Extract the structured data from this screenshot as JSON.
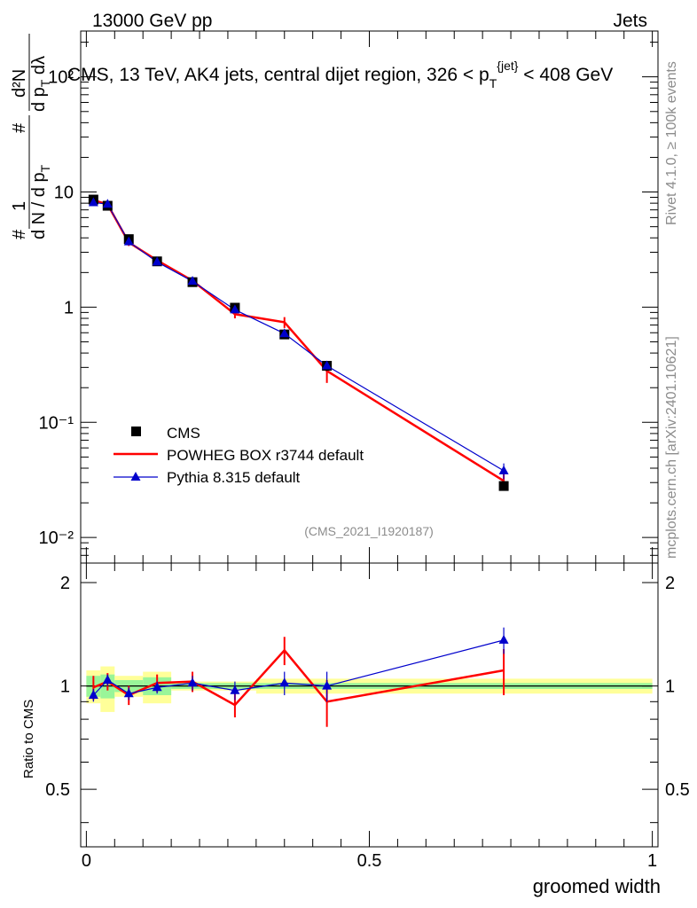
{
  "header": {
    "energy_label": "13000 GeV pp",
    "process_label": "Jets"
  },
  "side_labels": {
    "rivet": "Rivet 4.1.0, ≥ 100k events",
    "mcplots": "mcplots.cern.ch [arXiv:2401.10621]"
  },
  "chart_data": [
    {
      "type": "line",
      "title": "CMS, 13 TeV, AK4 jets, central dijet region, 326 < p_T^{jet} < 408 GeV",
      "analysis_id": "(CMS_2021_I1920187)",
      "ylabel": "# 1/(d N / d p_T) # d²N/(d p_T dλ)",
      "yscale": "log",
      "ylim": [
        0.006,
        250
      ],
      "xlim": [
        -0.01,
        1.01
      ],
      "ytick_labels": [
        "10⁻²",
        "10⁻¹",
        "1",
        "10",
        "10²"
      ],
      "legend_position": "bottom-left",
      "series": [
        {
          "name": "CMS",
          "style": "markers",
          "color": "#000000",
          "x": [
            0.0125,
            0.0375,
            0.075,
            0.125,
            0.1875,
            0.2625,
            0.35,
            0.425,
            0.7375
          ],
          "y": [
            8.6,
            7.6,
            3.9,
            2.5,
            1.65,
            0.99,
            0.58,
            0.31,
            0.028
          ],
          "yerr": [
            0.6,
            0.5,
            0.25,
            0.15,
            0.1,
            0.06,
            0.04,
            0.03,
            0.002
          ]
        },
        {
          "name": "POWHEG BOX r3744 default",
          "style": "line",
          "color": "#ff0000",
          "x": [
            0.0125,
            0.0375,
            0.075,
            0.125,
            0.1875,
            0.2625,
            0.35,
            0.425,
            0.7375
          ],
          "y": [
            8.5,
            7.8,
            3.65,
            2.55,
            1.7,
            0.87,
            0.74,
            0.28,
            0.031
          ],
          "yerr": [
            0.5,
            0.45,
            0.25,
            0.15,
            0.12,
            0.07,
            0.08,
            0.06,
            0.005
          ]
        },
        {
          "name": "Pythia 8.315 default",
          "style": "line+triangles",
          "color": "#0000cc",
          "x": [
            0.0125,
            0.0375,
            0.075,
            0.125,
            0.1875,
            0.2625,
            0.35,
            0.425,
            0.7375
          ],
          "y": [
            8.1,
            7.85,
            3.7,
            2.47,
            1.68,
            0.95,
            0.59,
            0.31,
            0.038
          ],
          "yerr": [
            0.3,
            0.3,
            0.15,
            0.1,
            0.07,
            0.05,
            0.04,
            0.03,
            0.006
          ]
        }
      ]
    },
    {
      "type": "line",
      "title": "",
      "xlabel": "groomed width",
      "ylabel": "Ratio to CMS",
      "xlim": [
        -0.01,
        1.01
      ],
      "ylim": [
        0.34,
        2.28
      ],
      "yticks": [
        0.5,
        1,
        2
      ],
      "ytick_labels": [
        "0.5",
        "1",
        "2"
      ],
      "xticks": [
        0,
        0.5,
        1
      ],
      "xtick_labels": [
        "0",
        "0.5",
        "1"
      ],
      "reference_line": 1,
      "uncertainty_bands": [
        {
          "x0": 0.0,
          "x1": 0.025,
          "stat_lo": 0.93,
          "stat_hi": 1.07,
          "tot_lo": 0.89,
          "tot_hi": 1.11
        },
        {
          "x0": 0.025,
          "x1": 0.05,
          "stat_lo": 0.92,
          "stat_hi": 1.08,
          "tot_lo": 0.84,
          "tot_hi": 1.14
        },
        {
          "x0": 0.05,
          "x1": 0.1,
          "stat_lo": 0.96,
          "stat_hi": 1.04,
          "tot_lo": 0.93,
          "tot_hi": 1.07
        },
        {
          "x0": 0.1,
          "x1": 0.15,
          "stat_lo": 0.94,
          "stat_hi": 1.06,
          "tot_lo": 0.89,
          "tot_hi": 1.1
        },
        {
          "x0": 0.15,
          "x1": 0.3,
          "stat_lo": 0.98,
          "stat_hi": 1.02,
          "tot_lo": 0.97,
          "tot_hi": 1.03
        },
        {
          "x0": 0.3,
          "x1": 1.0,
          "stat_lo": 0.98,
          "stat_hi": 1.02,
          "tot_lo": 0.95,
          "tot_hi": 1.05
        }
      ],
      "series": [
        {
          "name": "POWHEG BOX r3744 default",
          "color": "#ff0000",
          "x": [
            0.0125,
            0.0375,
            0.075,
            0.125,
            0.1875,
            0.2625,
            0.35,
            0.425,
            0.7375
          ],
          "y": [
            0.99,
            1.03,
            0.94,
            1.02,
            1.03,
            0.88,
            1.27,
            0.9,
            1.11
          ],
          "yerr": [
            0.08,
            0.06,
            0.06,
            0.06,
            0.07,
            0.07,
            0.12,
            0.14,
            0.17
          ]
        },
        {
          "name": "Pythia 8.315 default",
          "color": "#0000cc",
          "x": [
            0.0125,
            0.0375,
            0.075,
            0.125,
            0.1875,
            0.2625,
            0.35,
            0.425,
            0.7375
          ],
          "y": [
            0.94,
            1.04,
            0.95,
            0.99,
            1.02,
            0.97,
            1.02,
            1.0,
            1.36
          ],
          "yerr": [
            0.04,
            0.04,
            0.04,
            0.04,
            0.05,
            0.06,
            0.08,
            0.1,
            0.12
          ]
        }
      ]
    }
  ]
}
